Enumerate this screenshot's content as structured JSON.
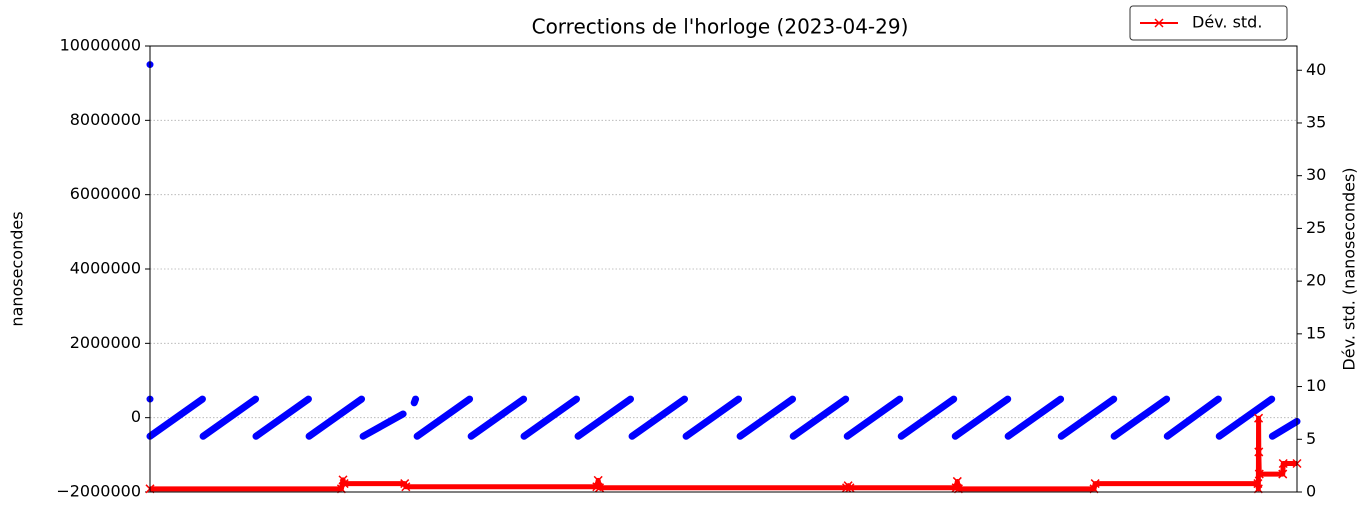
{
  "chart_data": {
    "type": "line",
    "title": "Corrections de l'horloge (2023-04-29)",
    "ylabel": "nanosecondes",
    "y2label": "Dév. std. (nanosecondes)",
    "xlim": [
      "11:22:33",
      "12:47:08"
    ],
    "xticks": [
      "11:30",
      "11:40",
      "11:50",
      "12:00",
      "12:10",
      "12:20",
      "12:30",
      "12:40"
    ],
    "ylim": [
      -2000000,
      10000000
    ],
    "yticks": [
      {
        "value": -2000000,
        "label": "−2000000"
      },
      0,
      2000000,
      4000000,
      6000000,
      8000000,
      10000000
    ],
    "y2lim": [
      0,
      42.3
    ],
    "y2ticks": [
      0,
      5,
      10,
      15,
      20,
      25,
      30,
      35,
      40
    ],
    "grid": true,
    "legend": "upper right",
    "series": [
      {
        "color": "#0000ff",
        "axis": "y",
        "x": [
          "11:22:33",
          null,
          "11:22:33",
          null,
          "11:22:33",
          "11:26:25",
          null,
          "11:26:28",
          "11:30:20",
          null,
          "11:30:22",
          "11:34:14",
          null,
          "11:34:17",
          "11:38:09",
          null,
          "11:38:16",
          "11:41:13",
          null,
          "11:42:02",
          "11:42:08",
          null,
          "11:42:15",
          "11:46:07",
          null,
          "11:46:14",
          "11:50:06",
          null,
          "11:50:08",
          "11:54:00",
          null,
          "11:54:07",
          "11:57:59",
          null,
          "11:58:06",
          "12:01:58",
          null,
          "12:02:05",
          "12:05:57",
          null,
          "12:06:04",
          "12:09:56",
          null,
          "12:09:59",
          "12:13:51",
          null,
          "12:13:58",
          "12:17:50",
          null,
          "12:17:57",
          "12:21:49",
          null,
          "12:21:56",
          "12:25:48",
          null,
          "12:25:50",
          "12:29:42",
          null,
          "12:29:45",
          "12:33:37",
          null,
          "12:33:39",
          "12:37:31",
          null,
          "12:37:34",
          "12:41:20",
          null,
          "12:41:24",
          "12:45:16",
          null,
          "12:45:19",
          "12:47:08"
        ],
        "values": [
          9500000,
          null,
          500000,
          null,
          -500000,
          500000,
          null,
          -500000,
          500000,
          null,
          -500000,
          500000,
          null,
          -500000,
          500000,
          null,
          -500000,
          100000,
          null,
          400000,
          500000,
          null,
          -500000,
          500000,
          null,
          -500000,
          500000,
          null,
          -500000,
          500000,
          null,
          -500000,
          500000,
          null,
          -500000,
          500000,
          null,
          -500000,
          500000,
          null,
          -500000,
          500000,
          null,
          -500000,
          500000,
          null,
          -500000,
          500000,
          null,
          -500000,
          500000,
          null,
          -500000,
          500000,
          null,
          -500000,
          500000,
          null,
          -500000,
          500000,
          null,
          -500000,
          500000,
          null,
          -500000,
          500000,
          null,
          -500000,
          500000,
          null,
          -500000,
          -100000
        ]
      },
      {
        "name": "Dév. std.",
        "color": "#ff0000",
        "axis": "y2",
        "marker": "x",
        "x": [
          "11:22:33",
          "11:36:40",
          "11:36:47",
          "11:36:52",
          "11:41:20",
          "11:41:25",
          "11:55:30",
          "11:55:36",
          "11:55:42",
          "12:13:55",
          "12:14:02",
          "12:14:10",
          "12:22:00",
          "12:22:05",
          "12:22:10",
          "12:32:10",
          "12:32:15",
          "12:44:15",
          "12:44:17",
          "12:44:18",
          "12:44:19",
          "12:44:21",
          "12:46:05",
          "12:46:07",
          "12:47:08"
        ],
        "values": [
          0.3,
          0.3,
          1.15,
          0.8,
          0.8,
          0.5,
          0.5,
          1.1,
          0.4,
          0.4,
          0.6,
          0.4,
          0.4,
          1.0,
          0.3,
          0.3,
          0.8,
          0.8,
          0.3,
          7.0,
          3.8,
          1.7,
          1.7,
          2.7,
          2.7
        ]
      }
    ]
  }
}
